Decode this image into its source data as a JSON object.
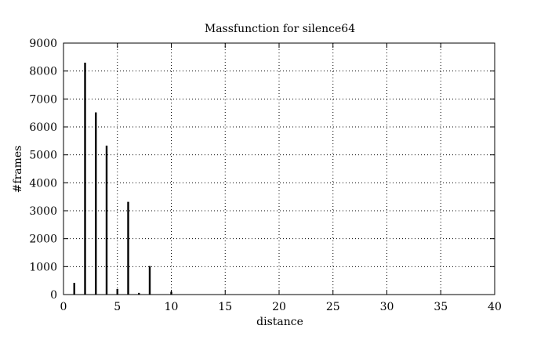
{
  "chart_data": {
    "type": "bar",
    "title": "Massfunction for silence64",
    "xlabel": "distance",
    "ylabel": "#frames",
    "xlim": [
      0,
      40
    ],
    "ylim": [
      0,
      9000
    ],
    "xticks": [
      0,
      5,
      10,
      15,
      20,
      25,
      30,
      35,
      40
    ],
    "yticks": [
      0,
      1000,
      2000,
      3000,
      4000,
      5000,
      6000,
      7000,
      8000,
      9000
    ],
    "grid": true,
    "grid_style": "dotted",
    "bar_color": "#000000",
    "x": [
      1,
      2,
      3,
      4,
      5,
      6,
      7,
      8,
      10
    ],
    "values": [
      420,
      8300,
      6520,
      5330,
      200,
      3320,
      60,
      1020,
      100
    ]
  }
}
